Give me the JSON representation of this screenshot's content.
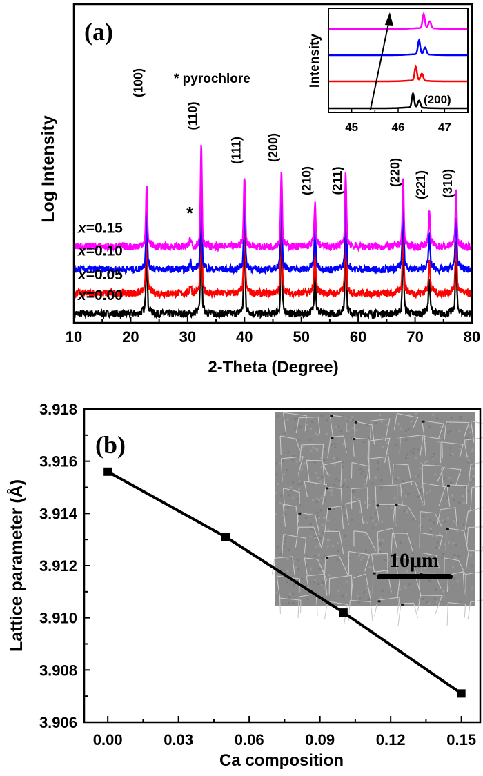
{
  "chart_data": [
    {
      "type": "line",
      "panel_label": "(a)",
      "xlabel": "2-Theta (Degree)",
      "ylabel": "Log Intensity",
      "xlim": [
        10,
        80
      ],
      "xticks": [
        10,
        20,
        30,
        40,
        50,
        60,
        70,
        80
      ],
      "ylim": [
        0,
        14
      ],
      "legend_text": "* pyrochlore",
      "pyrochlore_marker": {
        "text": "*",
        "x": 30.5
      },
      "peaks": [
        {
          "label": "(100)",
          "x": 22.8,
          "height": 2.4
        },
        {
          "label": "(110)",
          "x": 32.4,
          "height": 4.3
        },
        {
          "label": "(111)",
          "x": 40.0,
          "height": 2.9
        },
        {
          "label": "(200)",
          "x": 46.5,
          "height": 3.1
        },
        {
          "label": "(210)",
          "x": 52.4,
          "height": 1.6
        },
        {
          "label": "(211)",
          "x": 57.8,
          "height": 3.0
        },
        {
          "label": "(220)",
          "x": 67.9,
          "height": 2.7
        },
        {
          "label": "(221)",
          "x": 72.5,
          "height": 1.2
        },
        {
          "label": "(310)",
          "x": 77.2,
          "height": 2.1
        }
      ],
      "series": [
        {
          "name": "x=0.00",
          "prefix": "x",
          "value": "=0.00",
          "color": "#000000",
          "offset": 0.4
        },
        {
          "name": "x=0.05",
          "prefix": "x",
          "value": "=0.05",
          "color": "#ff0000",
          "offset": 1.3
        },
        {
          "name": "x=0.10",
          "prefix": "x",
          "value": "=0.10",
          "color": "#0000ff",
          "offset": 2.35
        },
        {
          "name": "x=0.15",
          "prefix": "x",
          "value": "=0.15",
          "color": "#ff00ff",
          "offset": 3.35
        }
      ],
      "inset": {
        "ylabel": "Intensity",
        "xlim": [
          44.5,
          47.5
        ],
        "xticks": [
          45,
          46,
          47
        ],
        "peak_label": "(200)",
        "peak_positions": [
          46.32,
          46.38,
          46.45,
          46.55
        ],
        "arrow": {
          "from": 45.4,
          "to": 45.82
        }
      }
    },
    {
      "type": "line",
      "panel_label": "(b)",
      "xlabel": "Ca composition",
      "ylabel": "Lattice parameter (Å)",
      "xlim": [
        -0.01,
        0.158
      ],
      "ylim": [
        3.906,
        3.918
      ],
      "xticks": [
        "0.00",
        "0.03",
        "0.06",
        "0.09",
        "0.12",
        "0.15"
      ],
      "yticks": [
        "3.906",
        "3.908",
        "3.910",
        "3.912",
        "3.914",
        "3.916",
        "3.918"
      ],
      "x": [
        0.0,
        0.05,
        0.1,
        0.15
      ],
      "y": [
        3.9156,
        3.9131,
        3.9102,
        3.9071
      ],
      "marker": "square",
      "color": "#000000",
      "inset_image": {
        "kind": "SEM micrograph",
        "scale_bar": "10μm"
      }
    }
  ]
}
